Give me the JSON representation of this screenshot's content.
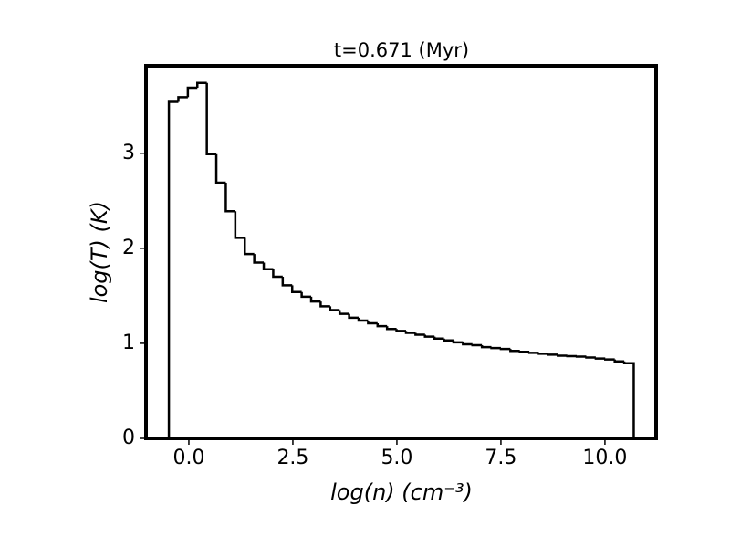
{
  "chart_data": {
    "type": "histogram",
    "title": "t=0.671 (Myr)",
    "x_label": "log(n) (cm⁻³)",
    "y_label": "log(T) (K)",
    "bins": [
      -0.48,
      -0.252,
      -0.024,
      0.204,
      0.432,
      0.66,
      0.888,
      1.116,
      1.344,
      1.572,
      1.8,
      2.028,
      2.256,
      2.484,
      2.712,
      2.94,
      3.168,
      3.396,
      3.624,
      3.852,
      4.08,
      4.308,
      4.536,
      4.764,
      4.992,
      5.22,
      5.448,
      5.676,
      5.904,
      6.132,
      6.36,
      6.588,
      6.816,
      7.044,
      7.272,
      7.5,
      7.728,
      7.956,
      8.184,
      8.412,
      8.64,
      8.868,
      9.096,
      9.324,
      9.552,
      9.78,
      10.008,
      10.236,
      10.464,
      10.692
    ],
    "values": [
      3.54,
      3.59,
      3.69,
      3.74,
      2.99,
      2.69,
      2.39,
      2.11,
      1.94,
      1.85,
      1.78,
      1.7,
      1.61,
      1.54,
      1.49,
      1.44,
      1.39,
      1.35,
      1.31,
      1.27,
      1.24,
      1.21,
      1.18,
      1.15,
      1.13,
      1.11,
      1.09,
      1.07,
      1.05,
      1.03,
      1.01,
      0.99,
      0.98,
      0.96,
      0.95,
      0.94,
      0.92,
      0.91,
      0.9,
      0.89,
      0.88,
      0.87,
      0.865,
      0.86,
      0.85,
      0.84,
      0.83,
      0.81,
      0.79
    ],
    "color": "#000000",
    "xlim": [
      -1.03,
      11.23
    ],
    "ylim": [
      0,
      3.92
    ],
    "xticks": [
      {
        "value": 0,
        "label": "0.0"
      },
      2.5,
      {
        "value": 5,
        "label": "5.0"
      },
      7.5,
      {
        "value": 10,
        "label": "10.0"
      }
    ],
    "yticks": [
      0,
      1,
      2,
      3
    ]
  }
}
